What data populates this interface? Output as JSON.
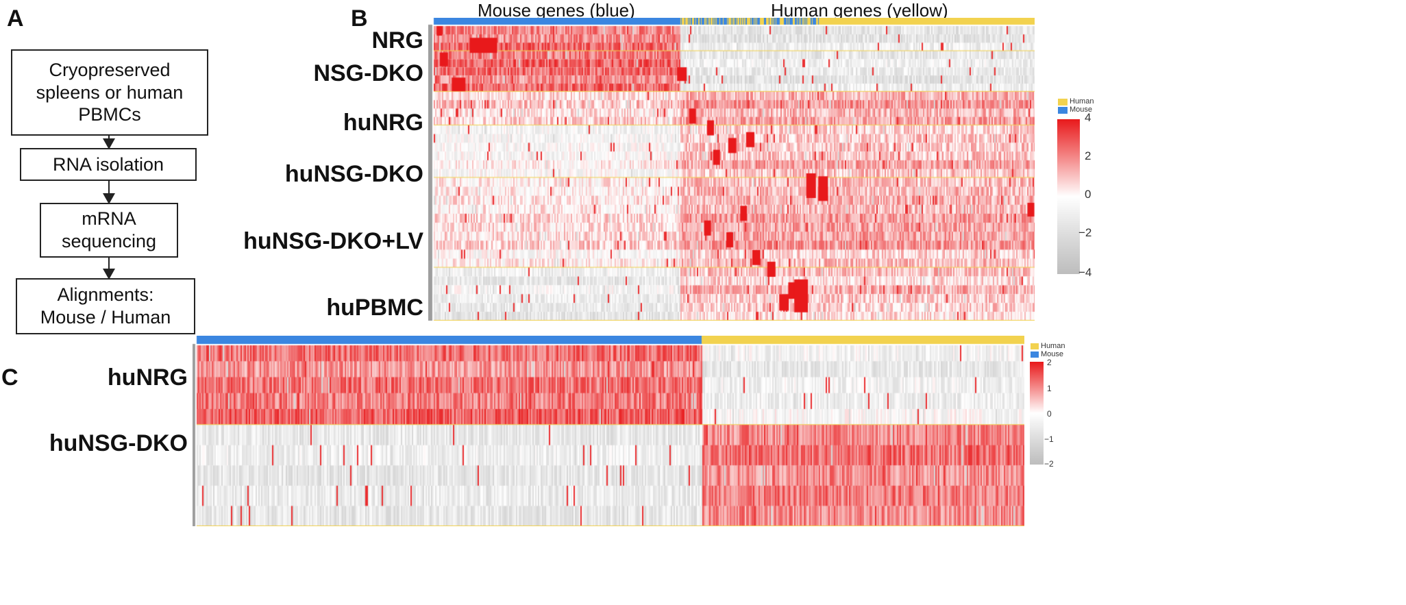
{
  "panels": {
    "a": "A",
    "b": "B",
    "c": "C"
  },
  "flowchart": {
    "steps": [
      "Cryopreserved\nspleens or human\nPBMCs",
      "RNA isolation",
      "mRNA\nsequencing",
      "Alignments:\nMouse / Human"
    ]
  },
  "heatmap_b": {
    "mouse_title": "Mouse genes (blue)",
    "human_title": "Human genes (yellow)",
    "rows": [
      "NRG",
      "NSG-DKO",
      "huNRG",
      "huNSG-DKO",
      "huNSG-DKO+LV",
      "huPBMC"
    ],
    "legend": [
      "Human",
      "Mouse"
    ],
    "colorbar_ticks": [
      "4",
      "2",
      "0",
      "−2",
      "−4"
    ]
  },
  "heatmap_c": {
    "rows": [
      "huNRG",
      "huNSG-DKO"
    ],
    "legend": [
      "Human",
      "Mouse"
    ],
    "colorbar_ticks": [
      "2",
      "1",
      "0",
      "−1",
      "−2"
    ]
  },
  "colors": {
    "mouse": "#3b86e0",
    "human": "#f2d24f",
    "high": "#e8191b",
    "mid": "#ffffff",
    "low": "#bdbdbd",
    "group_line": "#f2d24f"
  }
}
